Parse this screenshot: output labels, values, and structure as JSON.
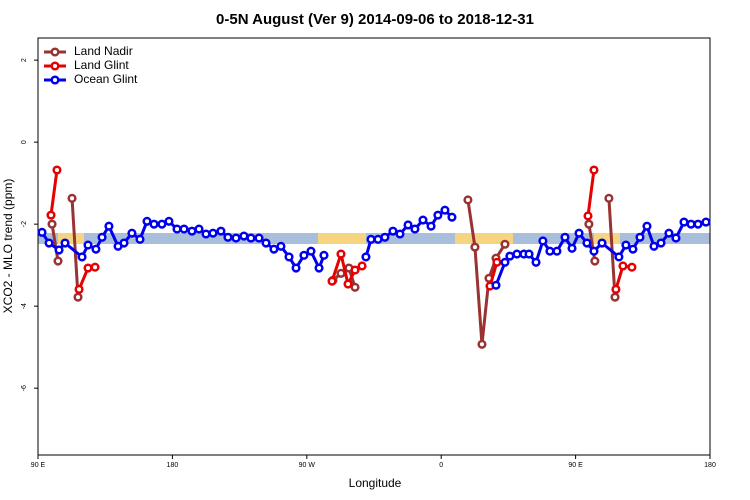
{
  "chart_data": {
    "type": "line",
    "title": "0-5N August (Ver 9)   2014-09-06 to 2018-12-31",
    "x_label": "Longitude",
    "y_label": "XCO2 - MLO trend (ppm)",
    "xlim": [
      90,
      540
    ],
    "xticks": [
      {
        "value": 90,
        "label": "90 E"
      },
      180,
      {
        "value": 270,
        "label": "90 W"
      },
      {
        "value": 360,
        "label": "0"
      },
      {
        "value": 450,
        "label": "90 E"
      },
      {
        "value": 540,
        "label": "180"
      }
    ],
    "ylim": [
      -7.63,
      2.54
    ],
    "yticks": [
      2,
      0,
      -2,
      -4,
      -6
    ],
    "legend": "top-left",
    "series": [
      {
        "name": "Land Nadir",
        "color": "#993333",
        "x": [
          99.4,
          103.4,
          null,
          112.8,
          116.8,
          null,
          287.5,
          292.9,
          298.2,
          302.3,
          null,
          377.9,
          382.6,
          387.3,
          392.0,
          396.7,
          402.7,
          null,
          458.9,
          462.9,
          null,
          472.3,
          476.4
        ],
        "values": [
          -2.0,
          -2.9,
          null,
          -1.37,
          -3.78,
          null,
          -3.37,
          -3.2,
          -3.07,
          -3.54,
          null,
          -1.41,
          -2.56,
          -4.93,
          -3.32,
          -2.83,
          -2.49,
          null,
          -2.0,
          -2.9,
          null,
          -1.37,
          -3.78
        ]
      },
      {
        "name": "Land Glint",
        "color": "#e60000",
        "x": [
          98.7,
          102.7,
          null,
          117.5,
          123.5,
          128.2,
          null,
          286.9,
          292.9,
          297.6,
          302.3,
          307.0,
          null,
          392.7,
          397.3,
          null,
          458.3,
          462.3,
          null,
          477.0,
          481.7,
          487.7
        ],
        "values": [
          -1.78,
          -0.68,
          null,
          -3.59,
          -3.07,
          -3.05,
          null,
          -3.39,
          -2.73,
          -3.46,
          -3.12,
          -3.02,
          null,
          -3.51,
          -2.93,
          null,
          -1.8,
          -0.68,
          null,
          -3.59,
          -3.02,
          -3.05
        ]
      },
      {
        "name": "Ocean Glint",
        "color": "#0000ee",
        "x": [
          92.7,
          97.4,
          104.1,
          108.1,
          119.5,
          123.5,
          128.8,
          132.9,
          137.5,
          143.6,
          147.6,
          152.9,
          158.3,
          163.0,
          167.7,
          173.0,
          177.7,
          183.1,
          187.8,
          193.1,
          197.8,
          202.5,
          207.2,
          212.5,
          217.2,
          222.6,
          227.9,
          232.6,
          238.0,
          242.7,
          248.0,
          252.7,
          258.1,
          262.8,
          268.1,
          272.8,
          278.2,
          281.5,
          null,
          309.6,
          313.0,
          317.7,
          322.3,
          327.7,
          332.4,
          337.8,
          342.4,
          347.8,
          353.2,
          357.8,
          362.5,
          367.2,
          null,
          396.7,
          402.7,
          406.0,
          410.7,
          415.4,
          418.8,
          423.5,
          428.1,
          432.8,
          437.5,
          442.9,
          447.6,
          452.3,
          457.6,
          462.3,
          467.7,
          479.0,
          483.7,
          488.4,
          493.1,
          497.8,
          502.5,
          507.2,
          512.5,
          517.2,
          522.6,
          527.3,
          532.0,
          537.3
        ],
        "values": [
          -2.2,
          -2.46,
          -2.63,
          -2.46,
          -2.8,
          -2.51,
          -2.61,
          -2.32,
          -2.05,
          -2.54,
          -2.46,
          -2.22,
          -2.37,
          -1.93,
          -2.0,
          -2.0,
          -1.93,
          -2.12,
          -2.12,
          -2.17,
          -2.12,
          -2.24,
          -2.22,
          -2.17,
          -2.32,
          -2.34,
          -2.29,
          -2.34,
          -2.34,
          -2.46,
          -2.61,
          -2.54,
          -2.8,
          -3.07,
          -2.76,
          -2.66,
          -3.07,
          -2.76,
          null,
          -2.8,
          -2.37,
          -2.37,
          -2.32,
          -2.17,
          -2.24,
          -2.02,
          -2.12,
          -1.9,
          -2.05,
          -1.78,
          -1.66,
          -1.83,
          null,
          -3.49,
          -2.93,
          -2.78,
          -2.73,
          -2.73,
          -2.73,
          -2.93,
          -2.41,
          -2.66,
          -2.66,
          -2.32,
          -2.59,
          -2.22,
          -2.46,
          -2.66,
          -2.46,
          -2.8,
          -2.51,
          -2.61,
          -2.32,
          -2.05,
          -2.54,
          -2.46,
          -2.22,
          -2.34,
          -1.95,
          -2.0,
          -2.0,
          -1.95
        ]
      }
    ]
  }
}
